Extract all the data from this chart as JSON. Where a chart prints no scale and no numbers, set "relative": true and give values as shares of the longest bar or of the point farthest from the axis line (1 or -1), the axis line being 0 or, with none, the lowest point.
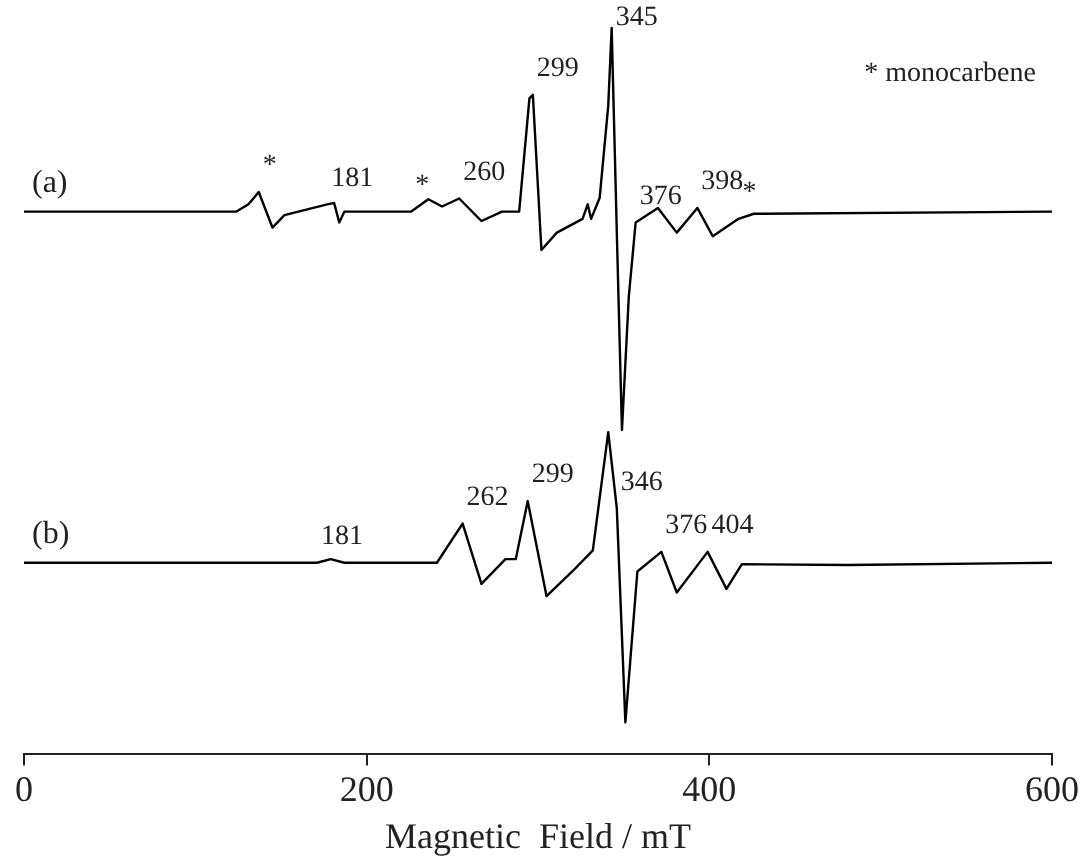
{
  "chart_data": {
    "type": "line",
    "xlabel": "Magnetic  Field / mT",
    "xlim": [
      0,
      600
    ],
    "xticks": [
      0,
      200,
      400,
      600
    ],
    "relative": true,
    "marker": "none",
    "series": [
      {
        "name": "(a)",
        "color": "#000000",
        "x": [
          0,
          124,
          131,
          137,
          145,
          152,
          177,
          181,
          184,
          187,
          226,
          236,
          244,
          254,
          267,
          279,
          289,
          295,
          297,
          302,
          311,
          326,
          329,
          331,
          336,
          341,
          343,
          346,
          349,
          353,
          357,
          370,
          381,
          393,
          402,
          417,
          426,
          600
        ],
        "values": [
          0.747,
          0.747,
          0.757,
          0.774,
          0.725,
          0.742,
          0.757,
          0.759,
          0.732,
          0.747,
          0.747,
          0.764,
          0.754,
          0.765,
          0.734,
          0.747,
          0.747,
          0.903,
          0.908,
          0.694,
          0.718,
          0.737,
          0.757,
          0.737,
          0.766,
          0.893,
          1.0,
          0.718,
          0.446,
          0.63,
          0.732,
          0.752,
          0.718,
          0.752,
          0.713,
          0.737,
          0.744,
          0.747
        ]
      },
      {
        "name": "(b)",
        "color": "#000000",
        "x": [
          0,
          171,
          179,
          187,
          241,
          256,
          267,
          281,
          287,
          294,
          305,
          320,
          332,
          341,
          346,
          351,
          358,
          372,
          381,
          399,
          410,
          419,
          481,
          600
        ],
        "values": [
          0.263,
          0.263,
          0.268,
          0.263,
          0.263,
          0.317,
          0.234,
          0.268,
          0.268,
          0.348,
          0.217,
          0.251,
          0.28,
          0.443,
          0.338,
          0.043,
          0.251,
          0.278,
          0.222,
          0.278,
          0.227,
          0.261,
          0.26,
          0.263
        ]
      }
    ],
    "annotations": [
      {
        "text": "*",
        "x": 137,
        "y": 0.774
      },
      {
        "text": "181",
        "x": 177,
        "y": 0.757
      },
      {
        "text": "*",
        "x": 226,
        "y": 0.747
      },
      {
        "text": "260",
        "x": 254,
        "y": 0.765
      },
      {
        "text": "299",
        "x": 297,
        "y": 0.908
      },
      {
        "text": "345",
        "x": 343,
        "y": 1.0
      },
      {
        "text": "376",
        "x": 357,
        "y": 0.732
      },
      {
        "text": "398",
        "x": 393,
        "y": 0.752
      },
      {
        "text": "*",
        "x": 417,
        "y": 0.737
      },
      "* monocarbene",
      {
        "text": "181",
        "x": 171,
        "y": 0.263
      },
      {
        "text": "262",
        "x": 256,
        "y": 0.317
      },
      {
        "text": "299",
        "x": 294,
        "y": 0.348
      },
      {
        "text": "346",
        "x": 346,
        "y": 0.338
      },
      {
        "text": "376",
        "x": 372,
        "y": 0.278
      },
      {
        "text": "404",
        "x": 399,
        "y": 0.278
      }
    ]
  }
}
